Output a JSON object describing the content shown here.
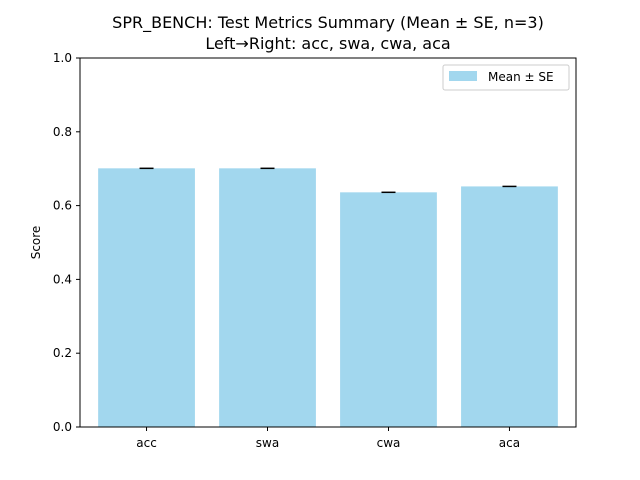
{
  "chart_data": {
    "type": "bar",
    "title": "SPR_BENCH: Test Metrics Summary (Mean ± SE, n=3)",
    "subtitle": "Left→Right: acc, swa, cwa, aca",
    "categories": [
      "acc",
      "swa",
      "cwa",
      "aca"
    ],
    "series": [
      {
        "name": "Mean ± SE",
        "values": [
          0.701,
          0.701,
          0.636,
          0.652
        ],
        "errors": [
          0.001,
          0.001,
          0.001,
          0.001
        ]
      }
    ],
    "ylabel": "Score",
    "xlabel": "",
    "ylim": [
      0,
      1.0
    ],
    "yticks": [
      "0.0",
      "0.2",
      "0.4",
      "0.6",
      "0.8",
      "1.0"
    ],
    "grid": false,
    "legend_position": "top-right",
    "colors": {
      "bar": "#a2d7ee",
      "error": "#000000",
      "axis": "#000000"
    }
  }
}
